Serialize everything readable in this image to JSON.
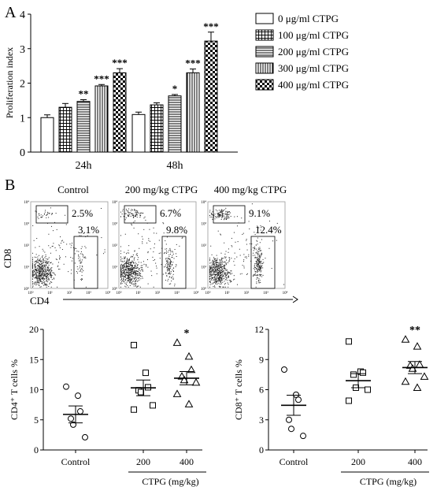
{
  "panel_a_label": "A",
  "panel_b_label": "B",
  "chart_data": [
    {
      "type": "bar",
      "ylabel": "Proliferation index",
      "ylim": [
        0,
        4
      ],
      "yticks": [
        "0",
        "1",
        "2",
        "3",
        "4"
      ],
      "categories": [
        "24h",
        "48h"
      ],
      "series": [
        {
          "name": "0 μg/ml CTPG",
          "values": [
            1.0,
            1.09
          ],
          "errors": [
            0.08,
            0.07
          ],
          "stars": [
            "",
            ""
          ],
          "pattern": "white"
        },
        {
          "name": "100 μg/ml CTPG",
          "values": [
            1.3,
            1.37
          ],
          "errors": [
            0.11,
            0.06
          ],
          "stars": [
            "",
            ""
          ],
          "pattern": "grid"
        },
        {
          "name": "200 μg/ml CTPG",
          "values": [
            1.47,
            1.63
          ],
          "errors": [
            0.05,
            0.04
          ],
          "stars": [
            "**",
            "*"
          ],
          "pattern": "hlines"
        },
        {
          "name": "300 μg/ml CTPG",
          "values": [
            1.92,
            2.3
          ],
          "errors": [
            0.04,
            0.11
          ],
          "stars": [
            "***",
            "***"
          ],
          "pattern": "vlines"
        },
        {
          "name": "400 μg/ml CTPG",
          "values": [
            2.3,
            3.22
          ],
          "errors": [
            0.12,
            0.26
          ],
          "stars": [
            "***",
            "***"
          ],
          "pattern": "check"
        }
      ],
      "legend_position": "top-right"
    },
    {
      "type": "flow-cytometry",
      "panels": [
        {
          "title": "Control",
          "cd8_pct": "2.5%",
          "cd4_pct": "3.1%"
        },
        {
          "title": "200 mg/kg CTPG",
          "cd8_pct": "6.7%",
          "cd4_pct": "9.8%"
        },
        {
          "title": "400 mg/kg CTPG",
          "cd8_pct": "9.1%",
          "cd4_pct": "12.4%"
        }
      ],
      "ylabel": "CD8",
      "xlabel": "CD4",
      "tick_labels": [
        "10⁰",
        "10¹",
        "10²",
        "10³",
        "10⁴"
      ]
    },
    {
      "type": "scatter",
      "ylabel": "CD4⁺ T cells %",
      "ylim": [
        0,
        20
      ],
      "yticks": [
        "0",
        "5",
        "10",
        "15",
        "20"
      ],
      "categories": [
        "Control",
        "200",
        "400"
      ],
      "group_label": "CTPG (mg/kg)",
      "markers": [
        "circle",
        "square",
        "triangle"
      ],
      "points": [
        [
          10.5,
          9.0,
          6.4,
          5.2,
          4.2,
          2.1
        ],
        [
          17.4,
          12.8,
          10.4,
          9.9,
          9.6,
          7.4,
          6.7
        ],
        [
          17.8,
          15.5,
          13.3,
          12.2,
          11.6,
          11.2,
          9.3,
          7.6
        ]
      ],
      "means": [
        5.9,
        10.3,
        11.9
      ],
      "sem": [
        1.4,
        1.3,
        1.1
      ],
      "stars": [
        "",
        "",
        "*"
      ]
    },
    {
      "type": "scatter",
      "ylabel": "CD8⁺ T cells %",
      "ylim": [
        0,
        12
      ],
      "yticks": [
        "0",
        "3",
        "6",
        "9",
        "12"
      ],
      "categories": [
        "Control",
        "200",
        "400"
      ],
      "group_label": "CTPG (mg/kg)",
      "markers": [
        "circle",
        "square",
        "triangle"
      ],
      "points": [
        [
          8.0,
          5.5,
          5.0,
          3.0,
          2.1,
          1.4
        ],
        [
          10.8,
          7.8,
          7.7,
          7.5,
          6.2,
          6.0,
          4.9
        ],
        [
          11.0,
          10.3,
          8.5,
          8.4,
          8.1,
          7.3,
          6.8,
          6.2
        ]
      ],
      "means": [
        4.45,
        6.9,
        8.2
      ],
      "sem": [
        1.0,
        0.7,
        0.6
      ],
      "stars": [
        "",
        "",
        "**"
      ]
    }
  ]
}
